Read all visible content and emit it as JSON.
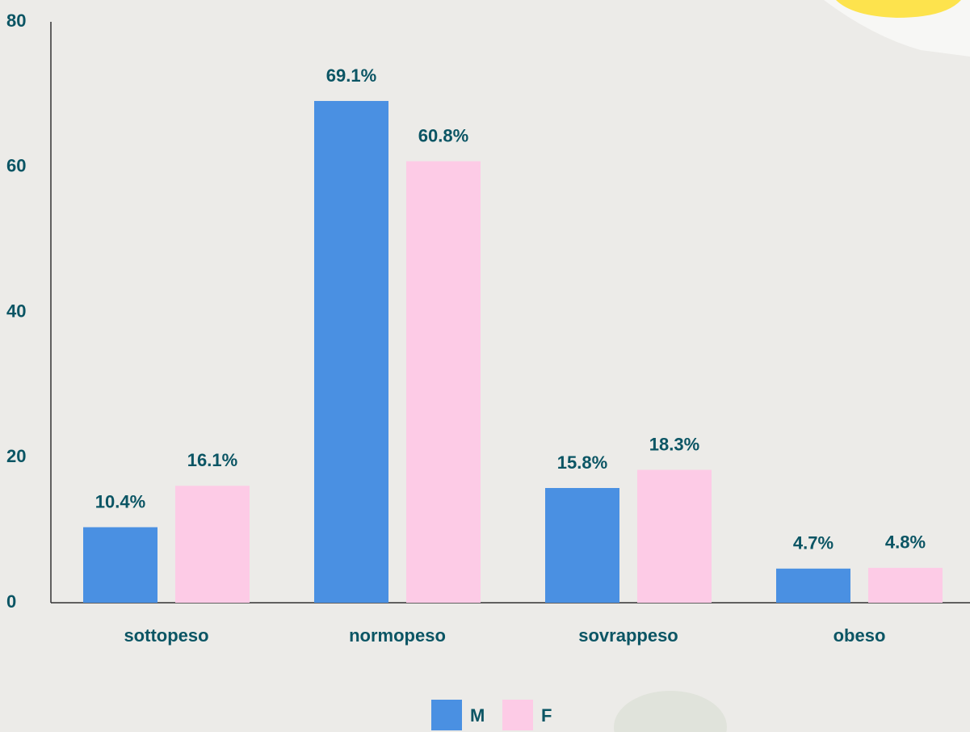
{
  "chart_data": {
    "type": "bar",
    "categories": [
      "sottopeso",
      "normopeso",
      "sovrappeso",
      "obeso"
    ],
    "series": [
      {
        "name": "M",
        "color": "#4a90e2",
        "values": [
          10.4,
          69.1,
          15.8,
          4.7
        ],
        "value_labels": [
          "10.4%",
          "69.1%",
          "15.8%",
          "4.7%"
        ]
      },
      {
        "name": "F",
        "color": "#fdcbe6",
        "values": [
          16.1,
          60.8,
          18.3,
          4.8
        ],
        "value_labels": [
          "16.1%",
          "60.8%",
          "18.3%",
          "4.8%"
        ]
      }
    ],
    "ylim": [
      0,
      80
    ],
    "yticks": [
      0,
      20,
      40,
      60,
      80
    ],
    "grid": false,
    "legend": "bottom"
  }
}
